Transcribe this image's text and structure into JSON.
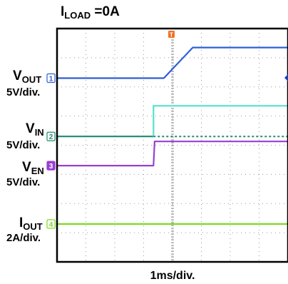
{
  "chart_data": {
    "type": "line",
    "title": "I",
    "title_sub": "LOAD",
    "title_rest": " =0A",
    "xlabel": "1ms/div.",
    "time_div_ms": 1,
    "x_divisions": 8,
    "y_divisions": 8,
    "grid": true,
    "trigger_position_div": 4,
    "channels": [
      {
        "id": "1",
        "main": "V",
        "sub": "OUT",
        "scale": "5V/div.",
        "color": "#2f5fd8",
        "ground_div": 6.3,
        "points_div": [
          [
            0,
            0
          ],
          [
            3.7,
            0
          ],
          [
            4.7,
            1.05
          ],
          [
            8,
            1.05
          ]
        ]
      },
      {
        "id": "2",
        "main": "V",
        "sub": "IN",
        "scale": "5V/div.",
        "color": "#1f8a6f",
        "ref_color": "#55e0cf",
        "ground_div": 4.3,
        "points_div": [
          [
            0,
            0
          ],
          [
            3.34,
            0
          ],
          [
            3.34,
            1.05
          ],
          [
            8,
            1.05
          ]
        ]
      },
      {
        "id": "3",
        "main": "V",
        "sub": "EN",
        "scale": "5V/div.",
        "color": "#9a3fd2",
        "ground_div": 3.3,
        "points_div": [
          [
            0,
            0
          ],
          [
            3.34,
            0
          ],
          [
            3.38,
            0.83
          ],
          [
            8,
            0.83
          ]
        ]
      },
      {
        "id": "4",
        "main": "I",
        "sub": "OUT",
        "scale": "2A/div.",
        "color": "#7dda22",
        "ground_div": 1.3,
        "points_div": [
          [
            0,
            0
          ],
          [
            8,
            0
          ]
        ]
      }
    ]
  }
}
